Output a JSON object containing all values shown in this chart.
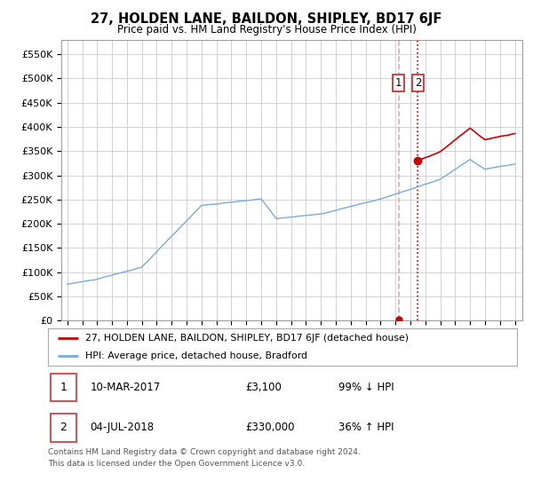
{
  "title": "27, HOLDEN LANE, BAILDON, SHIPLEY, BD17 6JF",
  "subtitle": "Price paid vs. HM Land Registry's House Price Index (HPI)",
  "ylabel_ticks": [
    "£0",
    "£50K",
    "£100K",
    "£150K",
    "£200K",
    "£250K",
    "£300K",
    "£350K",
    "£400K",
    "£450K",
    "£500K",
    "£550K"
  ],
  "ytick_vals": [
    0,
    50000,
    100000,
    150000,
    200000,
    250000,
    300000,
    350000,
    400000,
    450000,
    500000,
    550000
  ],
  "ylim": [
    0,
    580000
  ],
  "hpi_color": "#7aaadd",
  "price_color": "#cc0000",
  "vline1_color": "#ddaaaa",
  "vline2_color": "#cc0000",
  "transaction1_year": 2017.208,
  "transaction1_price": 3100,
  "transaction2_year": 2018.5,
  "transaction2_price": 330000,
  "legend_line1": "27, HOLDEN LANE, BAILDON, SHIPLEY, BD17 6JF (detached house)",
  "legend_line2": "HPI: Average price, detached house, Bradford",
  "table_row1": [
    "1",
    "10-MAR-2017",
    "£3,100",
    "99% ↓ HPI"
  ],
  "table_row2": [
    "2",
    "04-JUL-2018",
    "£330,000",
    "36% ↑ HPI"
  ],
  "footnote1": "Contains HM Land Registry data © Crown copyright and database right 2024.",
  "footnote2": "This data is licensed under the Open Government Licence v3.0.",
  "background_color": "#ffffff",
  "grid_color": "#cccccc",
  "xlim_left": 1994.6,
  "xlim_right": 2025.5
}
